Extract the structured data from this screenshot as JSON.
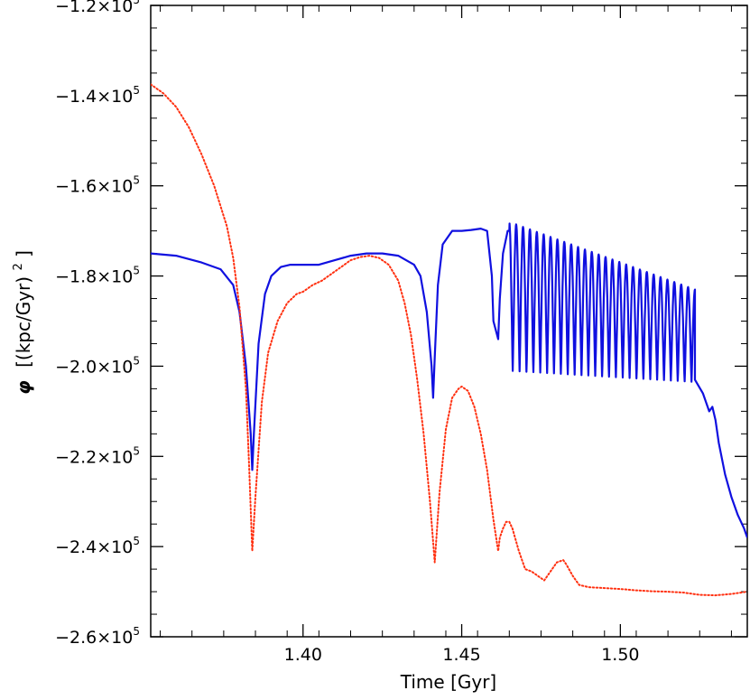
{
  "chart_data": {
    "type": "line",
    "title": "",
    "xlabel": "Time [Gyr]",
    "ylabel_symbol": "φ",
    "ylabel_units": "[(kpc/Gyr)",
    "ylabel_units_exp": "2",
    "ylabel_units_close": "]",
    "xlim": [
      1.352,
      1.54
    ],
    "ylim": [
      -260000,
      -120000
    ],
    "x_ticks": [
      {
        "value": 1.4,
        "label": "1.40"
      },
      {
        "value": 1.45,
        "label": "1.45"
      },
      {
        "value": 1.5,
        "label": "1.50"
      }
    ],
    "y_ticks": [
      {
        "value": -120000,
        "mantissa": "−1.2×10",
        "exp": "5"
      },
      {
        "value": -140000,
        "mantissa": "−1.4×10",
        "exp": "5"
      },
      {
        "value": -160000,
        "mantissa": "−1.6×10",
        "exp": "5"
      },
      {
        "value": -180000,
        "mantissa": "−1.8×10",
        "exp": "5"
      },
      {
        "value": -200000,
        "mantissa": "−2.0×10",
        "exp": "5"
      },
      {
        "value": -220000,
        "mantissa": "−2.2×10",
        "exp": "5"
      },
      {
        "value": -240000,
        "mantissa": "−2.4×10",
        "exp": "5"
      },
      {
        "value": -260000,
        "mantissa": "−2.6×10",
        "exp": "5"
      }
    ],
    "grid": false,
    "legend": "none",
    "series": [
      {
        "style": "solid",
        "color": "#1010e0",
        "x": [
          1.352,
          1.36,
          1.368,
          1.374,
          1.378,
          1.38,
          1.382,
          1.3835,
          1.384,
          1.3845,
          1.386,
          1.388,
          1.39,
          1.393,
          1.396,
          1.4,
          1.405,
          1.41,
          1.415,
          1.42,
          1.425,
          1.43,
          1.435,
          1.437,
          1.439,
          1.4405,
          1.441,
          1.4415,
          1.4425,
          1.444,
          1.447,
          1.45,
          1.453,
          1.456,
          1.458,
          1.4595,
          1.46,
          1.4615,
          1.462,
          1.463,
          1.4645,
          1.465
        ],
        "y": [
          -175000,
          -175500,
          -177000,
          -178500,
          -182000,
          -188000,
          -200000,
          -215000,
          -223000,
          -215000,
          -195000,
          -184000,
          -180000,
          -178000,
          -177500,
          -177500,
          -177500,
          -176500,
          -175500,
          -175000,
          -175000,
          -175500,
          -177500,
          -180000,
          -188000,
          -200000,
          -207000,
          -198000,
          -182000,
          -173000,
          -170000,
          -170000,
          -169800,
          -169500,
          -170000,
          -180000,
          -190000,
          -194000,
          -185000,
          -175000,
          -170000,
          -170000
        ],
        "oscillation": {
          "x_start": 1.465,
          "x_end": 1.5235,
          "periods": 27,
          "max_start": -168000,
          "max_end": -183000,
          "min_start": -201000,
          "min_end": -203500
        },
        "tail": {
          "x": [
            1.5235,
            1.526,
            1.528,
            1.529,
            1.53,
            1.531,
            1.533,
            1.535,
            1.537,
            1.539,
            1.54
          ],
          "y": [
            -203000,
            -206000,
            -210000,
            -209000,
            -212000,
            -217000,
            -224000,
            -229000,
            -233000,
            -236000,
            -238000
          ]
        }
      },
      {
        "style": "dotted",
        "color": "#ff3010",
        "x": [
          1.352,
          1.356,
          1.36,
          1.364,
          1.368,
          1.372,
          1.376,
          1.378,
          1.38,
          1.382,
          1.383,
          1.384,
          1.385,
          1.387,
          1.389,
          1.392,
          1.395,
          1.398,
          1.4,
          1.403,
          1.406,
          1.409,
          1.412,
          1.415,
          1.418,
          1.421,
          1.424,
          1.427,
          1.43,
          1.432,
          1.434,
          1.436,
          1.438,
          1.44,
          1.4415,
          1.443,
          1.445,
          1.447,
          1.449,
          1.45,
          1.452,
          1.454,
          1.456,
          1.458,
          1.46,
          1.4615,
          1.462,
          1.463,
          1.464,
          1.465,
          1.466,
          1.468,
          1.47,
          1.472,
          1.474,
          1.476,
          1.478,
          1.48,
          1.482,
          1.483,
          1.485,
          1.487,
          1.49,
          1.495,
          1.5,
          1.505,
          1.51,
          1.515,
          1.52,
          1.525,
          1.53,
          1.535,
          1.54
        ],
        "y": [
          -137500,
          -139500,
          -142500,
          -147000,
          -153000,
          -160000,
          -169000,
          -176000,
          -187000,
          -205000,
          -222000,
          -241000,
          -229000,
          -208000,
          -197000,
          -190000,
          -186000,
          -184000,
          -183500,
          -182000,
          -181000,
          -179500,
          -178000,
          -176500,
          -175800,
          -175500,
          -176000,
          -177500,
          -181000,
          -186000,
          -193000,
          -203000,
          -215000,
          -230000,
          -243500,
          -228000,
          -214000,
          -207000,
          -205000,
          -204500,
          -205500,
          -209000,
          -215000,
          -223000,
          -234000,
          -241000,
          -238000,
          -236000,
          -234500,
          -234500,
          -236000,
          -241000,
          -245000,
          -245500,
          -246500,
          -247500,
          -245500,
          -243500,
          -243000,
          -244000,
          -246500,
          -248500,
          -249000,
          -249200,
          -249400,
          -249700,
          -249900,
          -250000,
          -250200,
          -250700,
          -250800,
          -250500,
          -250000
        ]
      }
    ]
  }
}
